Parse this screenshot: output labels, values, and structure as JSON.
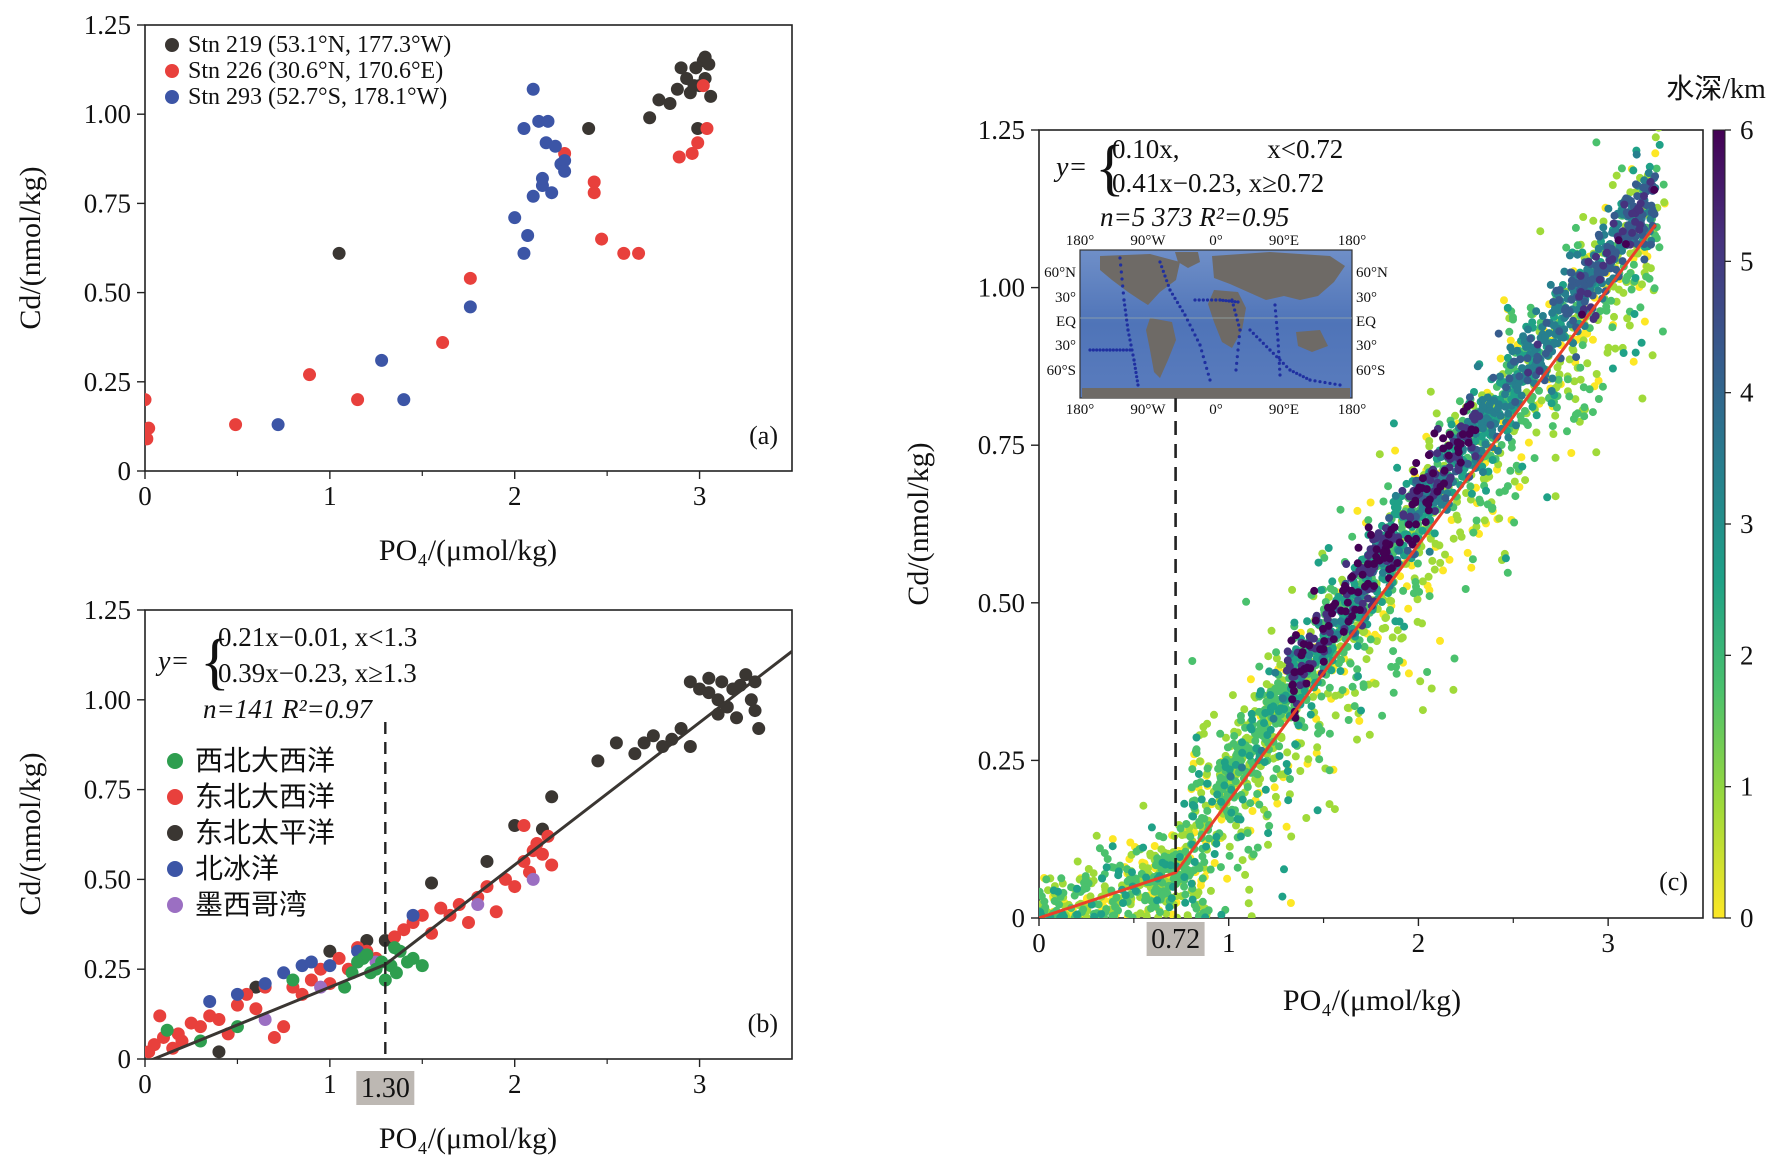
{
  "chart_data": [
    {
      "id": "a",
      "type": "scatter",
      "panel_label": "(a)",
      "xlabel": "PO₄/(μmol/kg)",
      "ylabel": "Cd/(nmol/kg)",
      "xlim": [
        0,
        3.5
      ],
      "ylim": [
        0,
        1.25
      ],
      "xticks": [
        "0",
        "1",
        "2",
        "3"
      ],
      "yticks": [
        "0",
        "0.25",
        "0.50",
        "0.75",
        "1.00",
        "1.25"
      ],
      "legend_position": "top-left",
      "series": [
        {
          "name": "Stn 219 (53.1°N, 177.3°W)",
          "color": "#3a3632",
          "points": [
            [
              1.05,
              0.61
            ],
            [
              2.4,
              0.96
            ],
            [
              2.73,
              0.99
            ],
            [
              2.78,
              1.04
            ],
            [
              2.84,
              1.03
            ],
            [
              2.88,
              1.07
            ],
            [
              2.9,
              1.13
            ],
            [
              2.93,
              1.1
            ],
            [
              2.95,
              1.06
            ],
            [
              2.97,
              1.08
            ],
            [
              2.98,
              1.13
            ],
            [
              2.99,
              0.96
            ],
            [
              3.0,
              1.08
            ],
            [
              3.02,
              1.15
            ],
            [
              3.03,
              1.16
            ],
            [
              3.05,
              1.14
            ],
            [
              3.06,
              1.05
            ],
            [
              3.03,
              1.1
            ]
          ]
        },
        {
          "name": "Stn 226 (30.6°N, 170.6°E)",
          "color": "#e8403c",
          "points": [
            [
              0.0,
              0.2
            ],
            [
              0.02,
              0.12
            ],
            [
              0.01,
              0.09
            ],
            [
              0.49,
              0.13
            ],
            [
              0.89,
              0.27
            ],
            [
              1.15,
              0.2
            ],
            [
              1.61,
              0.36
            ],
            [
              1.76,
              0.54
            ],
            [
              2.27,
              0.89
            ],
            [
              2.43,
              0.81
            ],
            [
              2.43,
              0.78
            ],
            [
              2.47,
              0.65
            ],
            [
              2.59,
              0.61
            ],
            [
              2.67,
              0.61
            ],
            [
              2.89,
              0.88
            ],
            [
              2.96,
              0.89
            ],
            [
              2.99,
              0.92
            ],
            [
              3.02,
              1.08
            ],
            [
              3.04,
              0.96
            ]
          ]
        },
        {
          "name": "Stn 293 (52.7°S, 178.1°W)",
          "color": "#3c55a6",
          "points": [
            [
              0.72,
              0.13
            ],
            [
              1.28,
              0.31
            ],
            [
              1.4,
              0.2
            ],
            [
              1.76,
              0.46
            ],
            [
              2.0,
              0.71
            ],
            [
              2.05,
              0.61
            ],
            [
              2.07,
              0.66
            ],
            [
              2.05,
              0.96
            ],
            [
              2.1,
              1.07
            ],
            [
              2.1,
              0.77
            ],
            [
              2.13,
              0.98
            ],
            [
              2.15,
              0.8
            ],
            [
              2.15,
              0.82
            ],
            [
              2.18,
              0.98
            ],
            [
              2.17,
              0.92
            ],
            [
              2.2,
              0.78
            ],
            [
              2.22,
              0.91
            ],
            [
              2.25,
              0.86
            ],
            [
              2.27,
              0.87
            ],
            [
              2.27,
              0.84
            ]
          ]
        }
      ]
    },
    {
      "id": "b",
      "type": "scatter",
      "panel_label": "(b)",
      "xlabel": "PO₄/(μmol/kg)",
      "ylabel": "Cd/(nmol/kg)",
      "xlim": [
        0,
        3.5
      ],
      "ylim": [
        0,
        1.25
      ],
      "xticks": [
        "0",
        "1",
        "2",
        "3"
      ],
      "yticks": [
        "0",
        "0.25",
        "0.50",
        "0.75",
        "1.00",
        "1.25"
      ],
      "breakpoint": {
        "x": 1.3,
        "label": "1.30"
      },
      "equation": {
        "prefix": "y=",
        "line1": "0.21x−0.01,  x<1.3",
        "line2": "0.39x−0.23,  x≥1.3",
        "stats": "n=141    R²=0.97"
      },
      "fit_line": [
        [
          0,
          -0.01
        ],
        [
          1.3,
          0.263
        ],
        [
          3.5,
          1.135
        ]
      ],
      "legend_position": "left",
      "series": [
        {
          "name": "西北大西洋",
          "color": "#2e9e4f",
          "points": [
            [
              0.12,
              0.08
            ],
            [
              0.3,
              0.05
            ],
            [
              0.5,
              0.09
            ],
            [
              0.8,
              0.22
            ],
            [
              1.08,
              0.2
            ],
            [
              1.12,
              0.24
            ],
            [
              1.15,
              0.27
            ],
            [
              1.18,
              0.28
            ],
            [
              1.2,
              0.29
            ],
            [
              1.22,
              0.24
            ],
            [
              1.25,
              0.25
            ],
            [
              1.28,
              0.27
            ],
            [
              1.3,
              0.22
            ],
            [
              1.33,
              0.26
            ],
            [
              1.36,
              0.24
            ],
            [
              1.38,
              0.3
            ],
            [
              1.42,
              0.27
            ],
            [
              1.45,
              0.28
            ],
            [
              1.5,
              0.26
            ],
            [
              1.35,
              0.31
            ]
          ]
        },
        {
          "name": "东北大西洋",
          "color": "#e8403c",
          "points": [
            [
              0.02,
              0.02
            ],
            [
              0.05,
              0.04
            ],
            [
              0.08,
              0.12
            ],
            [
              0.1,
              0.06
            ],
            [
              0.15,
              0.03
            ],
            [
              0.18,
              0.07
            ],
            [
              0.2,
              0.05
            ],
            [
              0.25,
              0.1
            ],
            [
              0.3,
              0.09
            ],
            [
              0.35,
              0.12
            ],
            [
              0.4,
              0.11
            ],
            [
              0.45,
              0.07
            ],
            [
              0.5,
              0.15
            ],
            [
              0.55,
              0.18
            ],
            [
              0.6,
              0.14
            ],
            [
              0.65,
              0.2
            ],
            [
              0.7,
              0.06
            ],
            [
              0.75,
              0.09
            ],
            [
              0.8,
              0.2
            ],
            [
              0.85,
              0.18
            ],
            [
              0.9,
              0.22
            ],
            [
              0.95,
              0.25
            ],
            [
              1.0,
              0.21
            ],
            [
              1.05,
              0.28
            ],
            [
              1.1,
              0.25
            ],
            [
              1.15,
              0.31
            ],
            [
              1.2,
              0.3
            ],
            [
              1.25,
              0.28
            ],
            [
              1.35,
              0.34
            ],
            [
              1.4,
              0.36
            ],
            [
              1.45,
              0.38
            ],
            [
              1.5,
              0.4
            ],
            [
              1.55,
              0.35
            ],
            [
              1.6,
              0.42
            ],
            [
              1.65,
              0.4
            ],
            [
              1.7,
              0.43
            ],
            [
              1.75,
              0.38
            ],
            [
              1.8,
              0.45
            ],
            [
              1.85,
              0.48
            ],
            [
              1.9,
              0.41
            ],
            [
              1.95,
              0.5
            ],
            [
              2.0,
              0.48
            ],
            [
              2.05,
              0.55
            ],
            [
              2.08,
              0.52
            ],
            [
              2.1,
              0.58
            ],
            [
              2.12,
              0.6
            ],
            [
              2.15,
              0.57
            ],
            [
              2.18,
              0.62
            ],
            [
              2.2,
              0.54
            ],
            [
              2.05,
              0.65
            ]
          ]
        },
        {
          "name": "东北太平洋",
          "color": "#3a3632",
          "points": [
            [
              0.4,
              0.02
            ],
            [
              0.6,
              0.2
            ],
            [
              1.0,
              0.3
            ],
            [
              1.2,
              0.33
            ],
            [
              1.3,
              0.33
            ],
            [
              1.55,
              0.49
            ],
            [
              1.85,
              0.55
            ],
            [
              2.0,
              0.65
            ],
            [
              2.15,
              0.64
            ],
            [
              2.2,
              0.73
            ],
            [
              2.45,
              0.83
            ],
            [
              2.55,
              0.88
            ],
            [
              2.65,
              0.85
            ],
            [
              2.7,
              0.88
            ],
            [
              2.75,
              0.9
            ],
            [
              2.8,
              0.87
            ],
            [
              2.85,
              0.89
            ],
            [
              2.9,
              0.92
            ],
            [
              2.95,
              0.87
            ],
            [
              2.95,
              1.05
            ],
            [
              3.0,
              1.03
            ],
            [
              3.05,
              1.06
            ],
            [
              3.1,
              1.0
            ],
            [
              3.12,
              1.05
            ],
            [
              3.15,
              0.98
            ],
            [
              3.18,
              1.03
            ],
            [
              3.2,
              0.95
            ],
            [
              3.22,
              1.04
            ],
            [
              3.25,
              1.07
            ],
            [
              3.28,
              1.0
            ],
            [
              3.3,
              0.97
            ],
            [
              3.32,
              0.92
            ],
            [
              3.3,
              1.05
            ],
            [
              3.1,
              0.96
            ],
            [
              3.05,
              1.02
            ]
          ]
        },
        {
          "name": "北冰洋",
          "color": "#3c55a6",
          "points": [
            [
              0.35,
              0.16
            ],
            [
              0.5,
              0.18
            ],
            [
              0.65,
              0.21
            ],
            [
              0.75,
              0.24
            ],
            [
              0.85,
              0.26
            ],
            [
              0.9,
              0.27
            ],
            [
              1.0,
              0.26
            ],
            [
              1.15,
              0.3
            ],
            [
              1.45,
              0.4
            ]
          ]
        },
        {
          "name": "墨西哥湾",
          "color": "#9b6fc2",
          "points": [
            [
              0.65,
              0.11
            ],
            [
              0.95,
              0.2
            ],
            [
              1.25,
              0.27
            ],
            [
              1.8,
              0.43
            ],
            [
              2.1,
              0.5
            ]
          ]
        }
      ]
    },
    {
      "id": "c",
      "type": "scatter",
      "panel_label": "(c)",
      "xlabel": "PO₄/(μmol/kg)",
      "ylabel": "Cd/(nmol/kg)",
      "xlim": [
        0,
        3.5
      ],
      "ylim": [
        0,
        1.25
      ],
      "xticks": [
        "0",
        "1",
        "2",
        "3"
      ],
      "yticks": [
        "0",
        "0.25",
        "0.50",
        "0.75",
        "1.00",
        "1.25"
      ],
      "breakpoint": {
        "x": 0.72,
        "label": "0.72"
      },
      "equation": {
        "prefix": "y=",
        "line1": "0.10x,             x<0.72",
        "line2": "0.41x−0.23, x≥0.72",
        "stats": "n=5 373    R²=0.95"
      },
      "fit_line": [
        [
          0,
          0.0
        ],
        [
          0.72,
          0.072
        ],
        [
          3.25,
          1.1
        ]
      ],
      "colorbar": {
        "title": "水深/km",
        "range": [
          0,
          6
        ],
        "ticks": [
          "0",
          "1",
          "2",
          "3",
          "4",
          "5",
          "6"
        ],
        "colormap": [
          "#fde725",
          "#a0da39",
          "#4ac16d",
          "#1fa187",
          "#277f8e",
          "#365c8d",
          "#46327e",
          "#440154"
        ]
      },
      "note": "n=5 373 points; dense viridis-colored cloud along the fit, shallow (yellow) points widely scattered",
      "inset_map": {
        "lon_labels_top": [
          "180°",
          "90°W",
          "0°",
          "90°E",
          "180°"
        ],
        "lon_labels_bottom": [
          "180°",
          "90°W",
          "0°",
          "90°E",
          "180°"
        ],
        "lat_labels": [
          "60°N",
          "30°",
          "EQ",
          "30°",
          "60°S"
        ]
      }
    }
  ]
}
